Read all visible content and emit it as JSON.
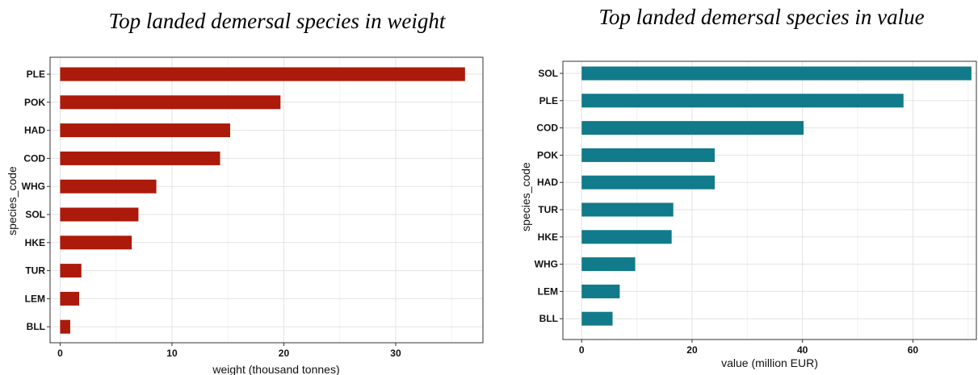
{
  "chart_data": [
    {
      "type": "bar",
      "orientation": "horizontal",
      "title": "Top landed demersal species in weight",
      "xlabel": "weight (thousand tonnes)",
      "ylabel": "species_code",
      "categories": [
        "PLE",
        "POK",
        "HAD",
        "COD",
        "WHG",
        "SOL",
        "HKE",
        "TUR",
        "LEM",
        "BLL"
      ],
      "values": [
        36.2,
        19.7,
        15.2,
        14.3,
        8.6,
        7.0,
        6.4,
        1.9,
        1.7,
        0.9
      ],
      "xticks": [
        0,
        10,
        20,
        30
      ],
      "xlim": [
        -0.9,
        37.8
      ],
      "bar_color": "#ab1a0a",
      "grid": true
    },
    {
      "type": "bar",
      "orientation": "horizontal",
      "title": "Top landed demersal species in value",
      "xlabel": "value (million EUR)",
      "ylabel": "species_code",
      "categories": [
        "SOL",
        "PLE",
        "COD",
        "POK",
        "HAD",
        "TUR",
        "HKE",
        "WHG",
        "LEM",
        "BLL"
      ],
      "values": [
        70.6,
        58.3,
        40.2,
        24.1,
        24.1,
        16.6,
        16.3,
        9.7,
        6.9,
        5.6
      ],
      "xticks": [
        0,
        20,
        40,
        60
      ],
      "xlim": [
        -3.4,
        71.5
      ],
      "bar_color": "#117a8b",
      "grid": true
    }
  ]
}
